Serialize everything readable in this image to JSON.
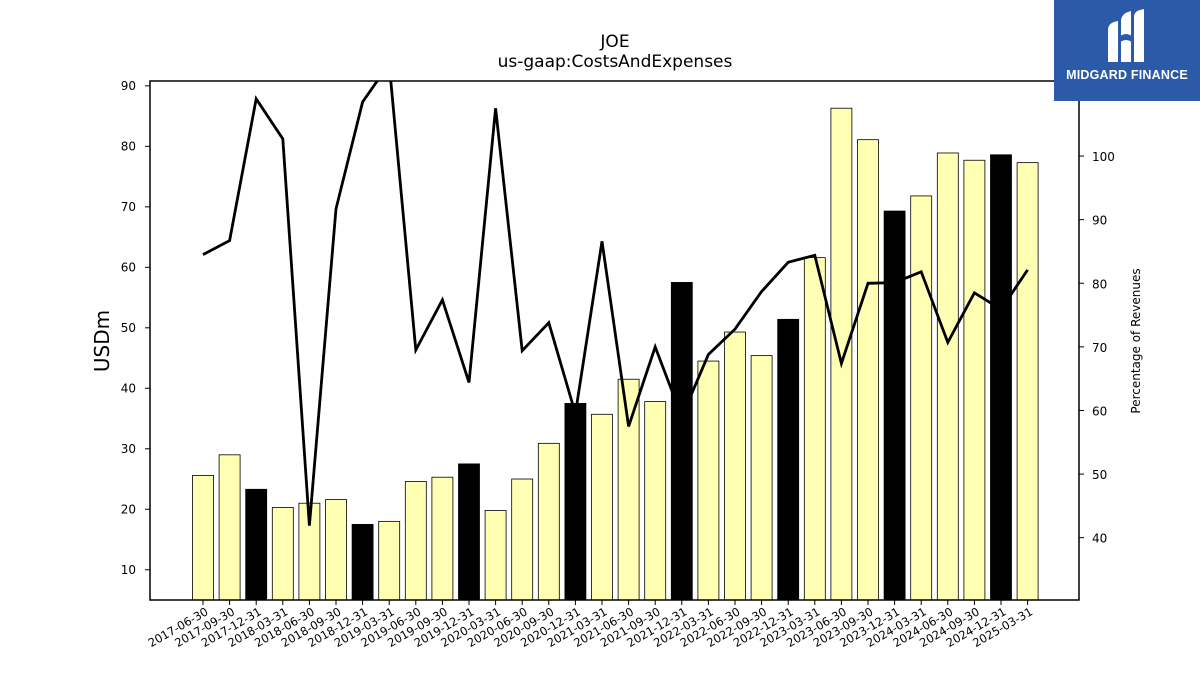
{
  "header": {
    "ticker": "JOE",
    "metric": "us-gaap:CostsAndExpenses"
  },
  "logo": {
    "name": "MIDGARD FINANCE",
    "bg_color": "#2b5aa8"
  },
  "chart_data": {
    "type": "bar",
    "title": "JOE",
    "subtitle": "us-gaap:CostsAndExpenses",
    "ylabel": "USDm",
    "y2label": "Percentage of Revenues",
    "ylim": [
      5,
      90.8
    ],
    "y2lim": [
      30.2,
      111.8
    ],
    "yticks": [
      10,
      20,
      30,
      40,
      50,
      60,
      70,
      80,
      90
    ],
    "y2ticks": [
      40,
      50,
      60,
      70,
      80,
      90,
      100
    ],
    "grid": false,
    "bar_color": "#ffffb3",
    "highlight_color": "#000000",
    "line_color": "#000000",
    "categories": [
      "2017-06-30",
      "2017-09-30",
      "2017-12-31",
      "2018-03-31",
      "2018-06-30",
      "2018-09-30",
      "2018-12-31",
      "2019-03-31",
      "2019-06-30",
      "2019-09-30",
      "2019-12-31",
      "2020-03-31",
      "2020-06-30",
      "2020-09-30",
      "2020-12-31",
      "2021-03-31",
      "2021-06-30",
      "2021-09-30",
      "2021-12-31",
      "2022-03-31",
      "2022-06-30",
      "2022-09-30",
      "2022-12-31",
      "2023-03-31",
      "2023-06-30",
      "2023-09-30",
      "2023-12-31",
      "2024-03-31",
      "2024-06-30",
      "2024-09-30",
      "2024-12-31",
      "2025-03-31"
    ],
    "series": [
      {
        "kind": "bar",
        "values": [
          25.6,
          29.0,
          23.3,
          20.3,
          21.0,
          21.6,
          17.5,
          18.0,
          24.6,
          25.3,
          27.5,
          19.8,
          25.0,
          30.9,
          37.5,
          35.7,
          41.5,
          37.8,
          57.5,
          44.5,
          49.3,
          45.4,
          51.4,
          61.6,
          86.3,
          81.1,
          69.3,
          71.8,
          78.9,
          77.7,
          78.6,
          77.3
        ],
        "highlight": [
          false,
          false,
          true,
          false,
          false,
          false,
          true,
          false,
          false,
          false,
          true,
          false,
          false,
          false,
          true,
          false,
          false,
          false,
          true,
          false,
          false,
          false,
          true,
          false,
          false,
          false,
          true,
          false,
          false,
          false,
          true,
          false
        ]
      },
      {
        "kind": "line",
        "axis": "right",
        "values": [
          84.5,
          86.7,
          109.0,
          102.7,
          41.9,
          91.7,
          108.5,
          114.5,
          69.5,
          77.4,
          64.4,
          107.5,
          69.4,
          73.8,
          59.5,
          86.6,
          57.5,
          70.0,
          59.0,
          68.8,
          72.8,
          78.7,
          83.3,
          84.4,
          67.4,
          80.0,
          80.1,
          81.8,
          70.7,
          78.5,
          75.9,
          82.1
        ]
      }
    ]
  }
}
